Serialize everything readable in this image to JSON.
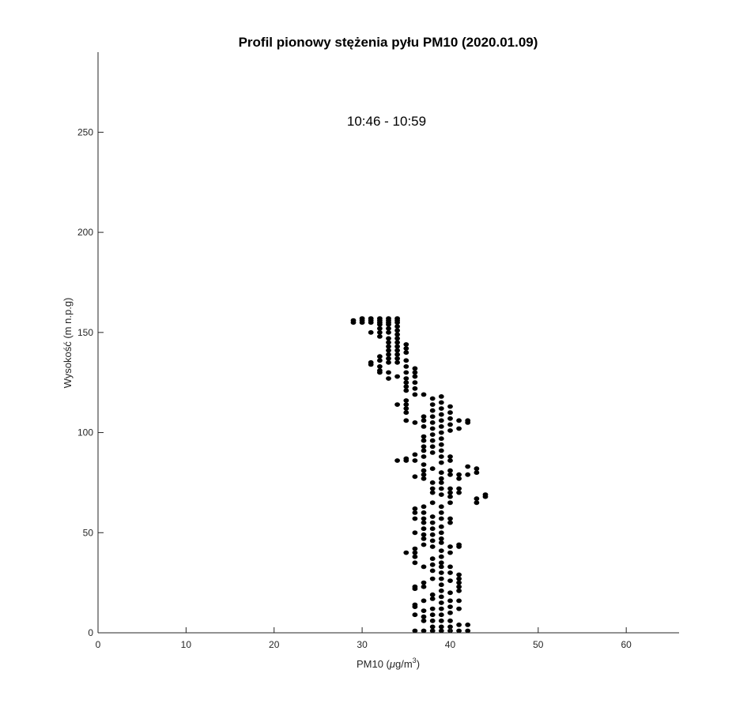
{
  "chart_data": {
    "type": "scatter",
    "title": "Profil pionowy stężenia pyłu PM10 (2020.01.09)",
    "annotation": "10:46 - 10:59",
    "xlabel": "PM10 (μg/m3)",
    "xlabel_parts": {
      "main": "PM10 (",
      "greek": "μ",
      "mid": "g/m",
      "sup": "3",
      "end": ")"
    },
    "ylabel": "Wysokość (m n.p.g)",
    "xlim": [
      0,
      66
    ],
    "ylim": [
      0,
      290
    ],
    "xticks": [
      0,
      10,
      20,
      30,
      40,
      50,
      60
    ],
    "yticks": [
      0,
      50,
      100,
      150,
      200,
      250
    ],
    "grid": false,
    "marker_color": "#000000",
    "series": [
      {
        "points": [
          [
            29,
            156
          ],
          [
            29,
            155
          ],
          [
            30,
            157
          ],
          [
            30,
            156
          ],
          [
            30,
            155
          ],
          [
            31,
            157
          ],
          [
            31,
            156
          ],
          [
            31,
            155
          ],
          [
            31,
            150
          ],
          [
            31,
            134
          ],
          [
            31,
            135
          ],
          [
            32,
            157
          ],
          [
            32,
            156
          ],
          [
            32,
            155
          ],
          [
            32,
            154
          ],
          [
            32,
            152
          ],
          [
            32,
            150
          ],
          [
            32,
            148
          ],
          [
            32,
            138
          ],
          [
            32,
            136
          ],
          [
            32,
            133
          ],
          [
            32,
            131
          ],
          [
            32,
            130
          ],
          [
            33,
            157
          ],
          [
            33,
            156
          ],
          [
            33,
            155
          ],
          [
            33,
            154
          ],
          [
            33,
            152
          ],
          [
            33,
            150
          ],
          [
            33,
            147
          ],
          [
            33,
            145
          ],
          [
            33,
            143
          ],
          [
            33,
            141
          ],
          [
            33,
            139
          ],
          [
            33,
            137
          ],
          [
            33,
            135
          ],
          [
            33,
            130
          ],
          [
            33,
            127
          ],
          [
            34,
            157
          ],
          [
            34,
            156
          ],
          [
            34,
            155
          ],
          [
            34,
            153
          ],
          [
            34,
            151
          ],
          [
            34,
            149
          ],
          [
            34,
            147
          ],
          [
            34,
            145
          ],
          [
            34,
            143
          ],
          [
            34,
            141
          ],
          [
            34,
            139
          ],
          [
            34,
            137
          ],
          [
            34,
            135
          ],
          [
            34,
            128
          ],
          [
            34,
            114
          ],
          [
            34,
            86
          ],
          [
            35,
            144
          ],
          [
            35,
            142
          ],
          [
            35,
            140
          ],
          [
            35,
            136
          ],
          [
            35,
            133
          ],
          [
            35,
            130
          ],
          [
            35,
            127
          ],
          [
            35,
            125
          ],
          [
            35,
            123
          ],
          [
            35,
            121
          ],
          [
            35,
            116
          ],
          [
            35,
            114
          ],
          [
            35,
            112
          ],
          [
            35,
            110
          ],
          [
            35,
            106
          ],
          [
            35,
            87
          ],
          [
            35,
            86
          ],
          [
            35,
            40
          ],
          [
            36,
            132
          ],
          [
            36,
            130
          ],
          [
            36,
            128
          ],
          [
            36,
            125
          ],
          [
            36,
            122
          ],
          [
            36,
            119
          ],
          [
            36,
            105
          ],
          [
            36,
            89
          ],
          [
            36,
            86
          ],
          [
            36,
            78
          ],
          [
            36,
            62
          ],
          [
            36,
            60
          ],
          [
            36,
            57
          ],
          [
            36,
            50
          ],
          [
            36,
            42
          ],
          [
            36,
            40
          ],
          [
            36,
            38
          ],
          [
            36,
            35
          ],
          [
            36,
            23
          ],
          [
            36,
            22
          ],
          [
            36,
            14
          ],
          [
            36,
            13
          ],
          [
            36,
            9
          ],
          [
            36,
            1
          ],
          [
            37,
            119
          ],
          [
            37,
            108
          ],
          [
            37,
            106
          ],
          [
            37,
            103
          ],
          [
            37,
            98
          ],
          [
            37,
            96
          ],
          [
            37,
            93
          ],
          [
            37,
            91
          ],
          [
            37,
            88
          ],
          [
            37,
            84
          ],
          [
            37,
            81
          ],
          [
            37,
            79
          ],
          [
            37,
            77
          ],
          [
            37,
            63
          ],
          [
            37,
            60
          ],
          [
            37,
            57
          ],
          [
            37,
            55
          ],
          [
            37,
            52
          ],
          [
            37,
            49
          ],
          [
            37,
            47
          ],
          [
            37,
            44
          ],
          [
            37,
            33
          ],
          [
            37,
            25
          ],
          [
            37,
            23
          ],
          [
            37,
            16
          ],
          [
            37,
            11
          ],
          [
            37,
            8
          ],
          [
            37,
            6
          ],
          [
            37,
            1
          ],
          [
            38,
            117
          ],
          [
            38,
            114
          ],
          [
            38,
            111
          ],
          [
            38,
            108
          ],
          [
            38,
            105
          ],
          [
            38,
            102
          ],
          [
            38,
            99
          ],
          [
            38,
            96
          ],
          [
            38,
            93
          ],
          [
            38,
            90
          ],
          [
            38,
            82
          ],
          [
            38,
            75
          ],
          [
            38,
            72
          ],
          [
            38,
            70
          ],
          [
            38,
            65
          ],
          [
            38,
            58
          ],
          [
            38,
            55
          ],
          [
            38,
            52
          ],
          [
            38,
            49
          ],
          [
            38,
            46
          ],
          [
            38,
            43
          ],
          [
            38,
            37
          ],
          [
            38,
            34
          ],
          [
            38,
            31
          ],
          [
            38,
            27
          ],
          [
            38,
            19
          ],
          [
            38,
            17
          ],
          [
            38,
            12
          ],
          [
            38,
            9
          ],
          [
            38,
            6
          ],
          [
            38,
            3
          ],
          [
            38,
            1
          ],
          [
            39,
            118
          ],
          [
            39,
            115
          ],
          [
            39,
            112
          ],
          [
            39,
            109
          ],
          [
            39,
            106
          ],
          [
            39,
            103
          ],
          [
            39,
            100
          ],
          [
            39,
            97
          ],
          [
            39,
            94
          ],
          [
            39,
            91
          ],
          [
            39,
            88
          ],
          [
            39,
            85
          ],
          [
            39,
            80
          ],
          [
            39,
            77
          ],
          [
            39,
            75
          ],
          [
            39,
            72
          ],
          [
            39,
            69
          ],
          [
            39,
            63
          ],
          [
            39,
            60
          ],
          [
            39,
            57
          ],
          [
            39,
            53
          ],
          [
            39,
            50
          ],
          [
            39,
            47
          ],
          [
            39,
            45
          ],
          [
            39,
            41
          ],
          [
            39,
            38
          ],
          [
            39,
            35
          ],
          [
            39,
            33
          ],
          [
            39,
            30
          ],
          [
            39,
            27
          ],
          [
            39,
            24
          ],
          [
            39,
            21
          ],
          [
            39,
            18
          ],
          [
            39,
            15
          ],
          [
            39,
            12
          ],
          [
            39,
            9
          ],
          [
            39,
            6
          ],
          [
            39,
            3
          ],
          [
            39,
            1
          ],
          [
            40,
            113
          ],
          [
            40,
            110
          ],
          [
            40,
            107
          ],
          [
            40,
            104
          ],
          [
            40,
            101
          ],
          [
            40,
            88
          ],
          [
            40,
            86
          ],
          [
            40,
            81
          ],
          [
            40,
            79
          ],
          [
            40,
            72
          ],
          [
            40,
            70
          ],
          [
            40,
            68
          ],
          [
            40,
            65
          ],
          [
            40,
            57
          ],
          [
            40,
            55
          ],
          [
            40,
            43
          ],
          [
            40,
            40
          ],
          [
            40,
            33
          ],
          [
            40,
            30
          ],
          [
            40,
            26
          ],
          [
            40,
            20
          ],
          [
            40,
            16
          ],
          [
            40,
            13
          ],
          [
            40,
            10
          ],
          [
            40,
            6
          ],
          [
            40,
            3
          ],
          [
            40,
            1
          ],
          [
            41,
            106
          ],
          [
            41,
            102
          ],
          [
            41,
            79
          ],
          [
            41,
            77
          ],
          [
            41,
            72
          ],
          [
            41,
            70
          ],
          [
            41,
            44
          ],
          [
            41,
            43
          ],
          [
            41,
            29
          ],
          [
            41,
            27
          ],
          [
            41,
            25
          ],
          [
            41,
            23
          ],
          [
            41,
            21
          ],
          [
            41,
            16
          ],
          [
            41,
            12
          ],
          [
            41,
            4
          ],
          [
            41,
            1
          ],
          [
            42,
            106
          ],
          [
            42,
            105
          ],
          [
            42,
            83
          ],
          [
            42,
            79
          ],
          [
            42,
            4
          ],
          [
            42,
            1
          ],
          [
            43,
            82
          ],
          [
            43,
            80
          ],
          [
            43,
            67
          ],
          [
            43,
            65
          ],
          [
            44,
            69
          ],
          [
            44,
            68
          ]
        ]
      }
    ]
  }
}
